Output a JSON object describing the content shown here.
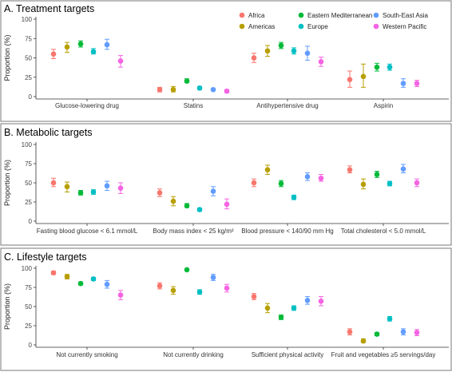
{
  "legend": [
    {
      "name": "Africa",
      "color": "#F8766D"
    },
    {
      "name": "Americas",
      "color": "#B79F00"
    },
    {
      "name": "Eastern Mediterranean",
      "color": "#00BA38"
    },
    {
      "name": "Europe",
      "color": "#00BFC4"
    },
    {
      "name": "South-East Asia",
      "color": "#619CFF"
    },
    {
      "name": "Western Pacific",
      "color": "#F564E3"
    }
  ],
  "chart_data": [
    {
      "type": "scatter",
      "title": "A. Treatment targets",
      "ylabel": "Proportion (%)",
      "ylim": [
        0,
        100
      ],
      "yticks": [
        0,
        25,
        50,
        75,
        100
      ],
      "categories": [
        "Glucose-lowering drug",
        "Statins",
        "Antihypertensive drug",
        "Aspirin"
      ],
      "series": [
        {
          "name": "Africa",
          "values": [
            55,
            9,
            50,
            22
          ],
          "lower": [
            49,
            6,
            44,
            12
          ],
          "upper": [
            61,
            12,
            56,
            33
          ]
        },
        {
          "name": "Americas",
          "values": [
            64,
            9,
            59,
            26
          ],
          "lower": [
            57,
            6,
            52,
            12
          ],
          "upper": [
            70,
            13,
            66,
            42
          ]
        },
        {
          "name": "Eastern Mediterranean",
          "values": [
            68,
            20,
            66,
            38
          ],
          "lower": [
            64,
            18,
            62,
            33
          ],
          "upper": [
            72,
            23,
            70,
            43
          ]
        },
        {
          "name": "Europe",
          "values": [
            58,
            11,
            59,
            38
          ],
          "lower": [
            55,
            9,
            55,
            34
          ],
          "upper": [
            62,
            13,
            63,
            42
          ]
        },
        {
          "name": "South-East Asia",
          "values": [
            67,
            9,
            56,
            17
          ],
          "lower": [
            61,
            8,
            47,
            12
          ],
          "upper": [
            74,
            10,
            65,
            23
          ]
        },
        {
          "name": "Western Pacific",
          "values": [
            46,
            7,
            45,
            17
          ],
          "lower": [
            38,
            5,
            39,
            13
          ],
          "upper": [
            53,
            9,
            51,
            21
          ]
        }
      ]
    },
    {
      "type": "scatter",
      "title": "B. Metabolic targets",
      "ylabel": "Proportion (%)",
      "ylim": [
        0,
        100
      ],
      "yticks": [
        0,
        25,
        50,
        75,
        100
      ],
      "categories": [
        "Fasting blood glucose < 6.1 mmol/L",
        "Body mass index < 25 kg/m²",
        "Blood pressure < 140/90 mm Hg",
        "Total cholesterol < 5.0 mmol/L"
      ],
      "series": [
        {
          "name": "Africa",
          "values": [
            50,
            37,
            50,
            67
          ],
          "lower": [
            45,
            32,
            45,
            63
          ],
          "upper": [
            56,
            42,
            55,
            72
          ]
        },
        {
          "name": "Americas",
          "values": [
            45,
            26,
            67,
            48
          ],
          "lower": [
            38,
            20,
            61,
            42
          ],
          "upper": [
            51,
            32,
            73,
            55
          ]
        },
        {
          "name": "Eastern Mediterranean",
          "values": [
            37,
            20,
            49,
            61
          ],
          "lower": [
            34,
            18,
            45,
            57
          ],
          "upper": [
            40,
            23,
            53,
            65
          ]
        },
        {
          "name": "Europe",
          "values": [
            38,
            15,
            31,
            49
          ],
          "lower": [
            35,
            13,
            28,
            46
          ],
          "upper": [
            41,
            17,
            34,
            52
          ]
        },
        {
          "name": "South-East Asia",
          "values": [
            46,
            39,
            58,
            68
          ],
          "lower": [
            40,
            33,
            53,
            63
          ],
          "upper": [
            52,
            45,
            63,
            74
          ]
        },
        {
          "name": "Western Pacific",
          "values": [
            43,
            22,
            56,
            50
          ],
          "lower": [
            36,
            16,
            52,
            45
          ],
          "upper": [
            50,
            29,
            61,
            55
          ]
        }
      ]
    },
    {
      "type": "scatter",
      "title": "C. Lifestyle targets",
      "ylabel": "Proportion (%)",
      "ylim": [
        0,
        100
      ],
      "yticks": [
        0,
        25,
        50,
        75,
        100
      ],
      "categories": [
        "Not currently smoking",
        "Not currently drinking",
        "Sufficient physical activity",
        "Fruit and vegetables ≥5 servings/day"
      ],
      "series": [
        {
          "name": "Africa",
          "values": [
            94,
            77,
            63,
            17
          ],
          "lower": [
            92,
            73,
            59,
            13
          ],
          "upper": [
            96,
            81,
            67,
            21
          ]
        },
        {
          "name": "Americas",
          "values": [
            89,
            71,
            48,
            5
          ],
          "lower": [
            86,
            66,
            42,
            3
          ],
          "upper": [
            92,
            76,
            54,
            8
          ]
        },
        {
          "name": "Eastern Mediterranean",
          "values": [
            80,
            98,
            36,
            14
          ],
          "lower": [
            78,
            97,
            33,
            12
          ],
          "upper": [
            82,
            99,
            39,
            16
          ]
        },
        {
          "name": "Europe",
          "values": [
            86,
            69,
            48,
            34
          ],
          "lower": [
            84,
            66,
            45,
            31
          ],
          "upper": [
            88,
            72,
            51,
            37
          ]
        },
        {
          "name": "South-East Asia",
          "values": [
            79,
            88,
            58,
            17
          ],
          "lower": [
            74,
            84,
            53,
            13
          ],
          "upper": [
            84,
            92,
            63,
            21
          ]
        },
        {
          "name": "Western Pacific",
          "values": [
            65,
            74,
            57,
            16
          ],
          "lower": [
            59,
            69,
            51,
            12
          ],
          "upper": [
            71,
            79,
            63,
            20
          ]
        }
      ]
    }
  ]
}
